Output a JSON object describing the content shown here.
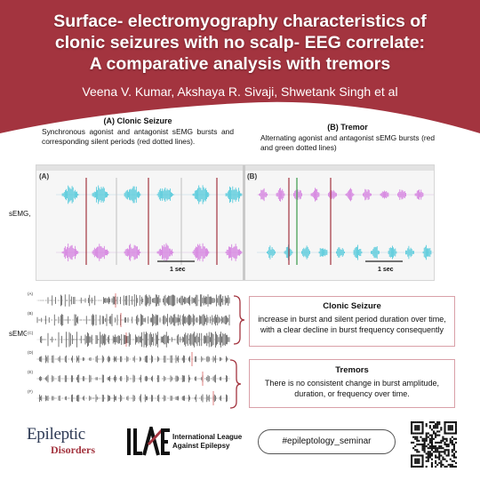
{
  "header": {
    "title_line1": "Surface- electromyography characteristics of",
    "title_line2": "clonic seizures with no scalp- EEG correlate:",
    "title_line3": "A comparative analysis with tremors",
    "authors": "Veena V. Kumar, Akshaya R. Sivaji, Shwetank Singh et al",
    "brand_color": "#a3343f"
  },
  "panels": {
    "a_title": "(A) Clonic Seizure",
    "a_desc": "Synchronous agonist and antagonist sEMG bursts and corresponding silent periods (red dotted lines).",
    "b_title": "(B) Tremor",
    "b_desc": "Alternating agonist and antagonist sEMG bursts (red and green dotted lines)"
  },
  "labels": {
    "semg_top": "sEMG,",
    "semg_bottom": "sEMG,"
  },
  "figure": {
    "letter_a": "(A)",
    "letter_b": "(B)",
    "scale_a": "1 sec",
    "scale_b": "1 sec"
  },
  "traces": {
    "labels": [
      "(A)",
      "(B)",
      "(C)",
      "(D)",
      "(E)",
      "(F)"
    ]
  },
  "clonic_box": {
    "title": "Clonic Seizure",
    "text": "increase in burst and silent period duration over time, with a clear decline in burst frequency consequently"
  },
  "tremor_box": {
    "title": "Tremors",
    "text": "There is no consistent change in burst amplitude, duration, or frequency over time."
  },
  "footer": {
    "logo_epileptic": "Epileptic",
    "logo_disorders": "Disorders",
    "ilae_line1": "International League",
    "ilae_line2": "Against Epilepsy",
    "hashtag": "#epileptology_seminar"
  }
}
